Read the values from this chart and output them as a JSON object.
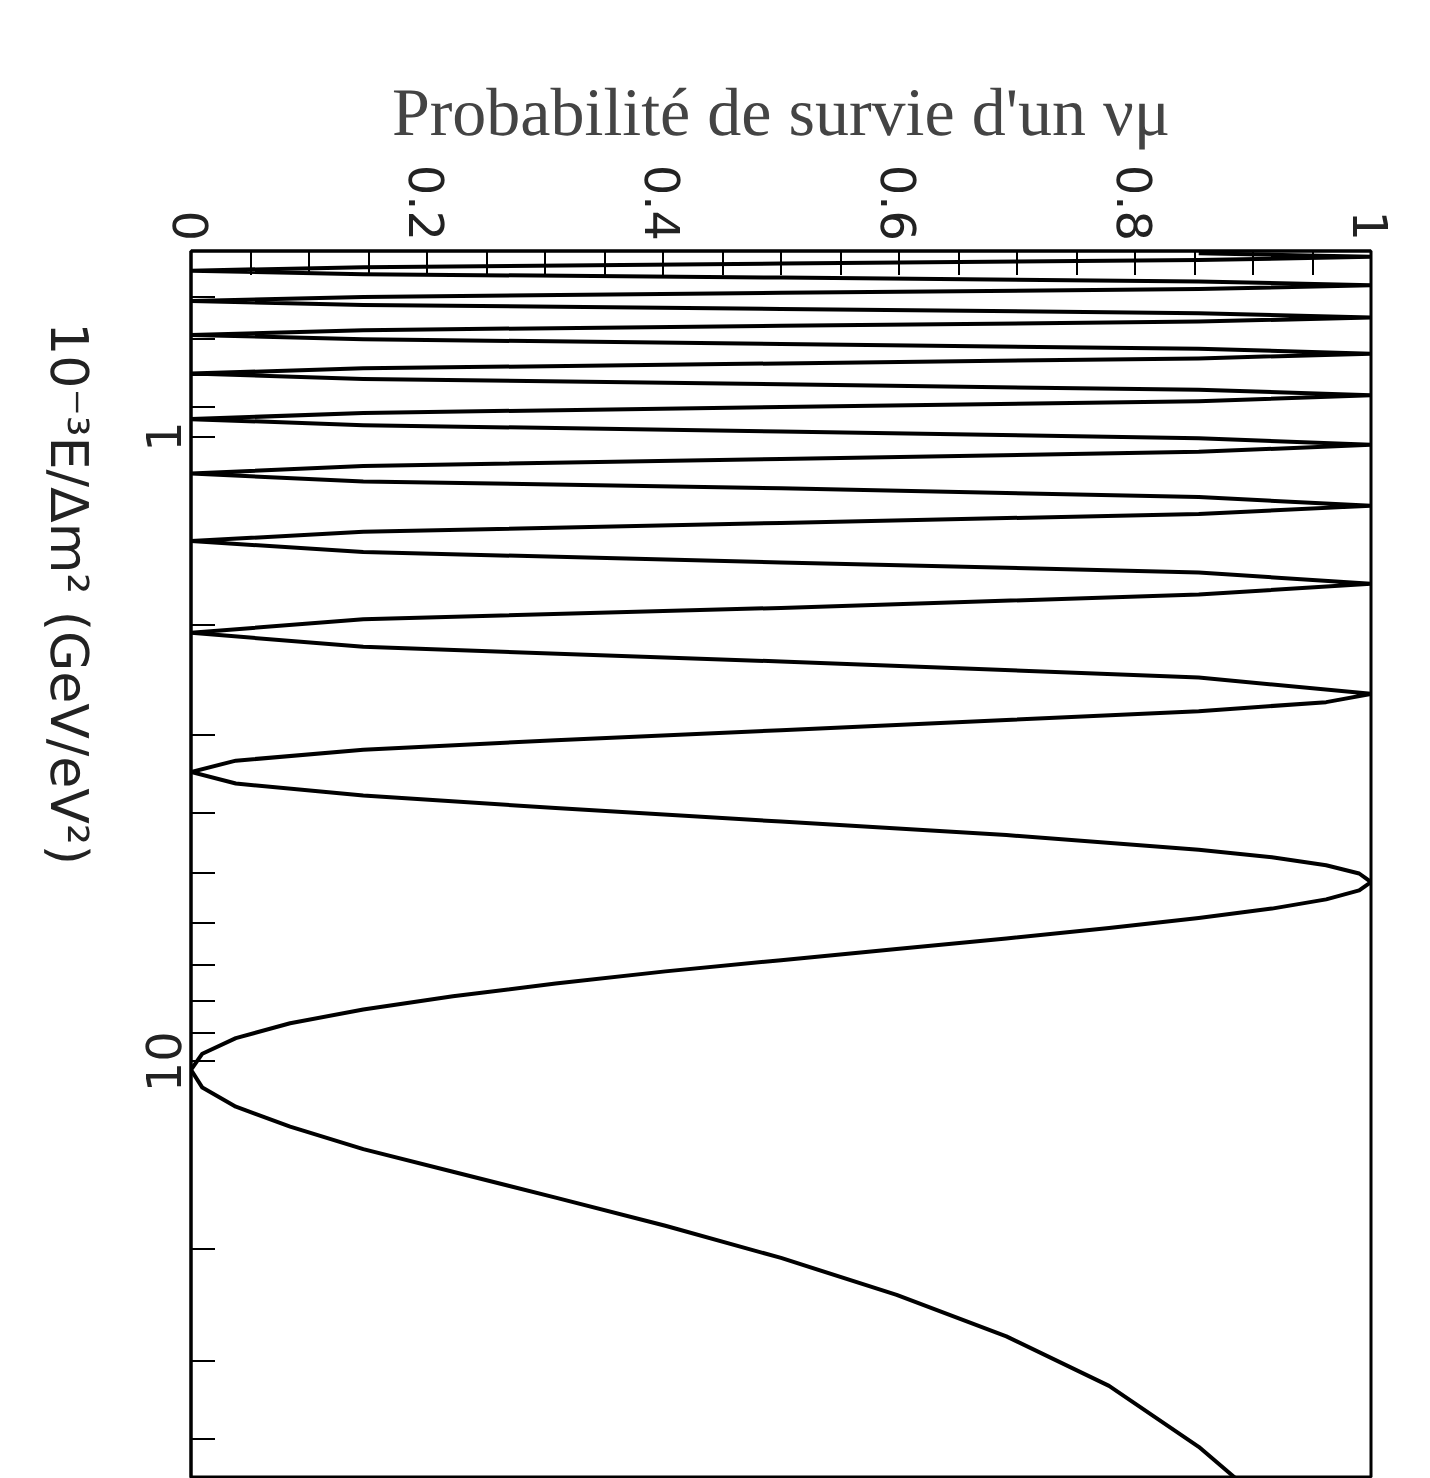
{
  "chart_data": {
    "type": "line",
    "xlabel": "Probabilité de survie d'un νμ",
    "ylabel": "10⁻³E/Δm² (GeV/eV²)",
    "log": "y",
    "grid": false,
    "marker": "none",
    "line_style": "solid",
    "xlim": [
      0,
      1
    ],
    "ylim": [
      46.5,
      0.505
    ],
    "xticks": [
      0,
      {
        "value": 0.05,
        "label": null
      },
      {
        "value": 0.1,
        "label": null
      },
      {
        "value": 0.15,
        "label": null
      },
      0.2,
      {
        "value": 0.25,
        "label": null
      },
      {
        "value": 0.3,
        "label": null
      },
      {
        "value": 0.35,
        "label": null
      },
      0.4,
      {
        "value": 0.45,
        "label": null
      },
      {
        "value": 0.5,
        "label": null
      },
      {
        "value": 0.55,
        "label": null
      },
      0.6,
      {
        "value": 0.65,
        "label": null
      },
      {
        "value": 0.7,
        "label": null
      },
      {
        "value": 0.75,
        "label": null
      },
      0.8,
      {
        "value": 0.85,
        "label": null
      },
      {
        "value": 0.9,
        "label": null
      },
      {
        "value": 0.95,
        "label": null
      },
      1
    ],
    "yticks": [
      {
        "value": 0.6,
        "label": null
      },
      {
        "value": 0.7,
        "label": null
      },
      {
        "value": 0.8,
        "label": null
      },
      {
        "value": 0.9,
        "label": null
      },
      1,
      {
        "value": 2,
        "label": null
      },
      {
        "value": 3,
        "label": null
      },
      {
        "value": 4,
        "label": null
      },
      {
        "value": 5,
        "label": null
      },
      {
        "value": 6,
        "label": null
      },
      {
        "value": 7,
        "label": null
      },
      {
        "value": 8,
        "label": null
      },
      {
        "value": 9,
        "label": null
      },
      10,
      {
        "value": 20,
        "label": null
      },
      {
        "value": 30,
        "label": null
      },
      {
        "value": 40,
        "label": null
      }
    ],
    "series": [
      {
        "color": "#000000",
        "x": [
          0.886,
          0.854,
          0.778,
          0.691,
          0.598,
          0.5,
          0.402,
          0.309,
          0.222,
          0.146,
          0.084,
          0.038,
          0.0096,
          0,
          0.0096,
          0.038,
          0.084,
          0.146,
          0.222,
          0.309,
          0.402,
          0.5,
          0.598,
          0.691,
          0.778,
          0.854,
          0.916,
          0.962,
          0.99,
          1,
          0.99,
          0.962,
          0.916,
          0.854,
          0.691,
          0.5,
          0.309,
          0.146,
          0.038,
          0,
          0.038,
          0.146,
          0.309,
          0.5,
          0.691,
          0.854,
          0.962,
          1,
          0.854,
          0.5,
          0.146,
          0,
          0.146,
          0.5,
          0.854,
          1,
          0.854,
          0.5,
          0.146,
          0,
          0.146,
          0.5,
          0.854,
          1,
          0.854,
          0.5,
          0.146,
          0,
          0.146,
          0.5,
          0.854,
          1,
          0.854,
          0.5,
          0.146,
          0,
          0.146,
          0.5,
          0.854,
          1,
          0.854,
          0.5,
          0.146,
          0,
          0.146,
          0.5,
          0.854,
          1,
          0.854,
          0.5,
          0.146,
          0,
          0.146,
          0.5,
          0.854,
          1,
          0.854,
          0.5,
          0.146,
          0,
          0.146,
          0.5,
          0.854,
          1,
          0.854,
          0.5,
          0.146,
          0,
          0.146,
          0.5,
          0.854,
          1,
          0.854
        ],
        "values": [
          46.5,
          41.3,
          33.0,
          27.5,
          23.6,
          20.6,
          18.3,
          16.5,
          15.0,
          13.8,
          12.7,
          11.8,
          11.0,
          10.3,
          9.71,
          9.17,
          8.68,
          8.25,
          7.86,
          7.5,
          7.17,
          6.88,
          6.6,
          6.35,
          6.11,
          5.89,
          5.69,
          5.5,
          5.32,
          5.16,
          5.0,
          4.85,
          4.71,
          4.58,
          4.34,
          4.13,
          3.93,
          3.75,
          3.59,
          3.44,
          3.3,
          3.17,
          3.06,
          2.95,
          2.84,
          2.75,
          2.66,
          2.58,
          2.43,
          2.29,
          2.17,
          2.06,
          1.96,
          1.88,
          1.79,
          1.72,
          1.65,
          1.59,
          1.53,
          1.47,
          1.42,
          1.375,
          1.33,
          1.29,
          1.25,
          1.21,
          1.18,
          1.146,
          1.115,
          1.086,
          1.058,
          1.031,
          1.006,
          0.982,
          0.959,
          0.938,
          0.917,
          0.897,
          0.878,
          0.859,
          0.842,
          0.825,
          0.809,
          0.793,
          0.778,
          0.764,
          0.75,
          0.737,
          0.724,
          0.711,
          0.699,
          0.688,
          0.676,
          0.665,
          0.655,
          0.645,
          0.635,
          0.625,
          0.616,
          0.607,
          0.598,
          0.589,
          0.581,
          0.573,
          0.565,
          0.557,
          0.55,
          0.543,
          0.536,
          0.529,
          0.522,
          0.516,
          0.509
        ]
      }
    ]
  }
}
